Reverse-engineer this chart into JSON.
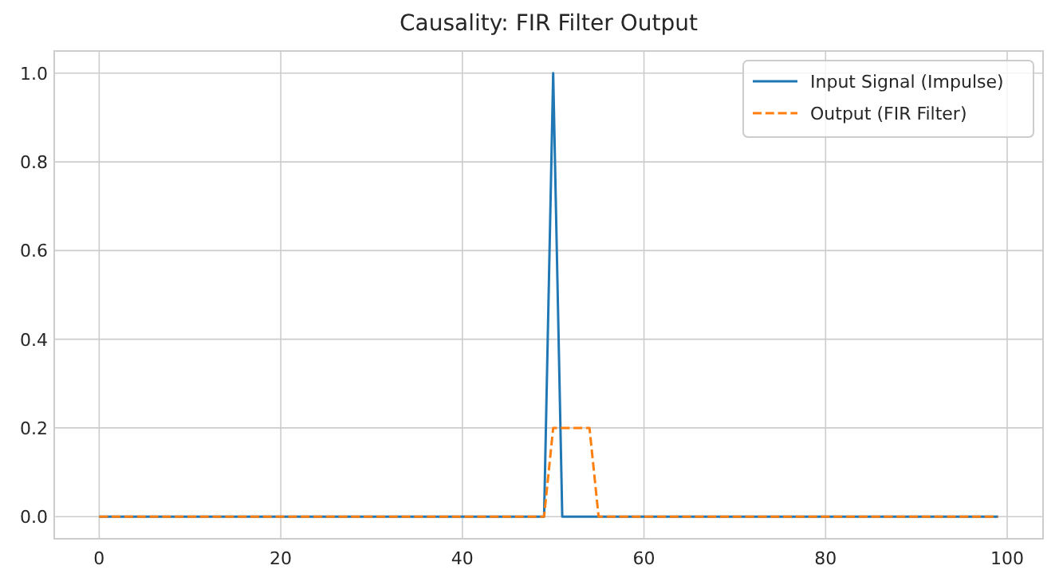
{
  "chart_data": {
    "type": "line",
    "title": "Causality: FIR Filter Output",
    "xlim": [
      -4.95,
      103.95
    ],
    "xticks": [
      0,
      20,
      40,
      60,
      80,
      100
    ],
    "ylim": [
      -0.05,
      1.05
    ],
    "yticks": [
      {
        "value": 0,
        "label": "0.0"
      },
      {
        "value": 0.2,
        "label": "0.2"
      },
      {
        "value": 0.4,
        "label": "0.4"
      },
      {
        "value": 0.6,
        "label": "0.6"
      },
      {
        "value": 0.8,
        "label": "0.8"
      },
      {
        "value": 1,
        "label": "1.0"
      }
    ],
    "grid": true,
    "legend": "top right",
    "series": [
      {
        "name": "Input Signal (Impulse)",
        "color": "#1f77b4",
        "line_style": "solid",
        "x": [
          0,
          49,
          50,
          51,
          99
        ],
        "values": [
          0,
          0,
          1,
          0,
          0
        ]
      },
      {
        "name": "Output (FIR Filter)",
        "color": "#ff7f0e",
        "line_style": "dashed",
        "x": [
          0,
          49,
          50,
          54,
          55,
          99
        ],
        "values": [
          0,
          0,
          0.2,
          0.2,
          0,
          0
        ]
      }
    ]
  }
}
